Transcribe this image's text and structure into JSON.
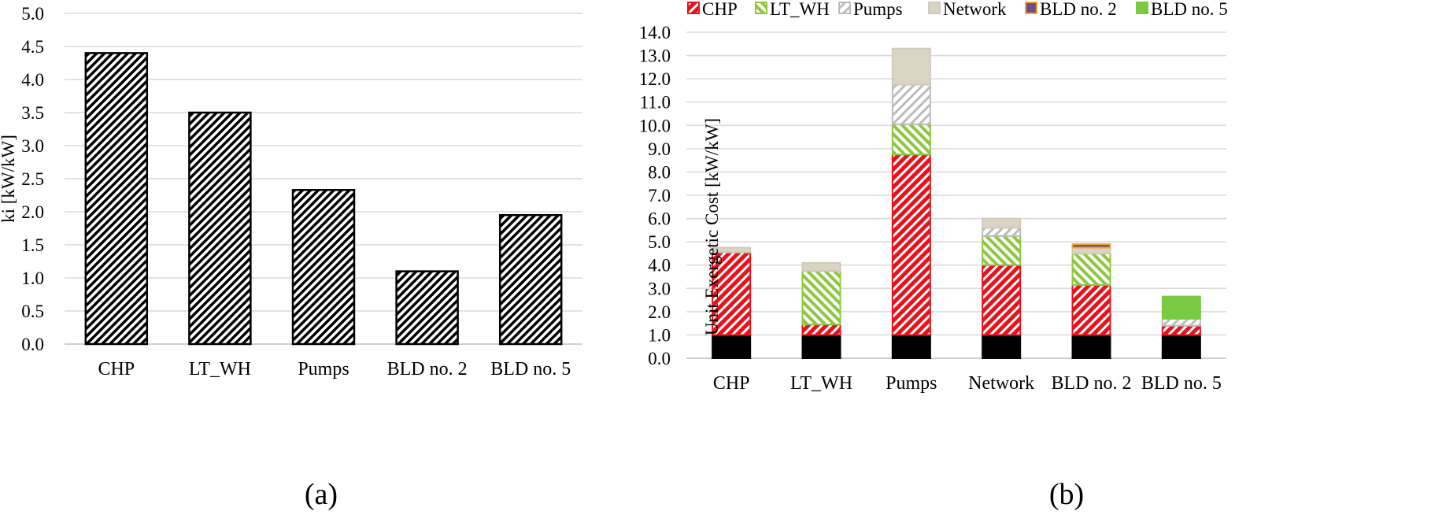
{
  "chart_data": [
    {
      "type": "bar",
      "panel_label": "(a)",
      "categories": [
        "CHP",
        "LT_WH",
        "Pumps",
        "BLD no. 2",
        "BLD no. 5"
      ],
      "values": [
        4.4,
        3.5,
        2.33,
        1.1,
        1.95
      ],
      "title": "",
      "xlabel": "",
      "ylabel": "ki [kW/kW]",
      "ylim": [
        0,
        5
      ],
      "yticks": [
        "0.0",
        "0.5",
        "1.0",
        "1.5",
        "2.0",
        "2.5",
        "3.0",
        "3.5",
        "4.0",
        "4.5",
        "5.0"
      ],
      "grid": true,
      "fill": "black-white diagonal hatch"
    },
    {
      "type": "bar",
      "stacked": true,
      "panel_label": "(b)",
      "categories": [
        "CHP",
        "LT_WH",
        "Pumps",
        "Network",
        "BLD no. 2",
        "BLD no. 5"
      ],
      "title": "",
      "xlabel": "",
      "ylabel": "Unit Exergetic Cost [kW/kW]",
      "ylim": [
        0,
        14
      ],
      "yticks": [
        "0.0",
        "1.0",
        "2.0",
        "3.0",
        "4.0",
        "5.0",
        "6.0",
        "7.0",
        "8.0",
        "9.0",
        "10.0",
        "11.0",
        "12.0",
        "13.0",
        "14.0"
      ],
      "grid": true,
      "legend_position": "top",
      "series": [
        {
          "values": [
            1.0,
            1.0,
            1.0,
            1.0,
            1.0,
            1.0
          ],
          "color": "#000000"
        },
        {
          "name": "CHP",
          "values": [
            3.55,
            0.45,
            7.75,
            3.0,
            2.15,
            0.4
          ],
          "color": "#e8121c"
        },
        {
          "name": "LT_WH",
          "values": [
            0.0,
            2.3,
            1.3,
            1.25,
            1.35,
            0.0
          ],
          "color": "#8dc63f"
        },
        {
          "name": "Pumps",
          "values": [
            0.0,
            0.0,
            1.7,
            0.35,
            0.0,
            0.3
          ],
          "color": "#a6a6a6"
        },
        {
          "name": "Network",
          "values": [
            0.2,
            0.35,
            1.55,
            0.4,
            0.25,
            0.0
          ],
          "color": "#d9d4c4"
        },
        {
          "name": "BLD no. 2",
          "values": [
            0.0,
            0.0,
            0.0,
            0.0,
            0.15,
            0.0
          ],
          "color": "#f5a623"
        },
        {
          "name": "BLD no. 5",
          "values": [
            0.0,
            0.0,
            0.0,
            0.0,
            0.0,
            0.95
          ],
          "color": "#7ac943"
        }
      ]
    }
  ]
}
